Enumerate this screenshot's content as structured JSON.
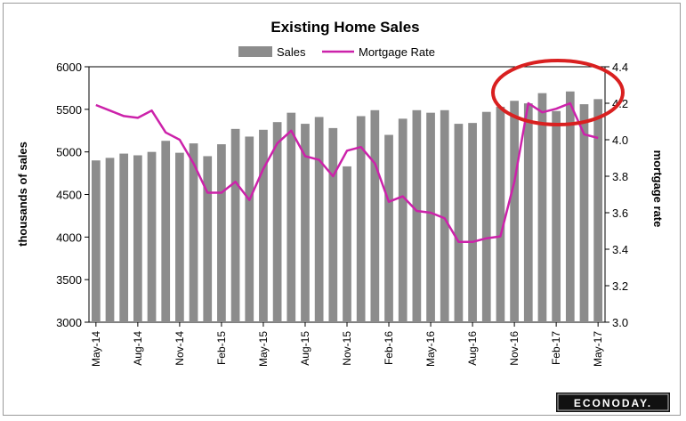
{
  "chart_data": {
    "type": "bar+line",
    "title": "Existing Home Sales",
    "ylabel": "thousands of sales",
    "y2label": "mortgage rate",
    "ylim": [
      3000,
      6000
    ],
    "y2lim": [
      3.0,
      4.4
    ],
    "yticks": [
      "6000",
      "5500",
      "5000",
      "4500",
      "4000",
      "3500",
      "3000"
    ],
    "y2ticks": [
      "4.4",
      "4.2",
      "4.0",
      "3.8",
      "3.6",
      "3.4",
      "3.2",
      "3.0"
    ],
    "x_labels": [
      {
        "label": "May-14",
        "index": 0
      },
      {
        "label": "Aug-14",
        "index": 3
      },
      {
        "label": "Nov-14",
        "index": 6
      },
      {
        "label": "Feb-15",
        "index": 9
      },
      {
        "label": "May-15",
        "index": 12
      },
      {
        "label": "Aug-15",
        "index": 15
      },
      {
        "label": "Nov-15",
        "index": 18
      },
      {
        "label": "Feb-16",
        "index": 21
      },
      {
        "label": "May-16",
        "index": 24
      },
      {
        "label": "Aug-16",
        "index": 27
      },
      {
        "label": "Nov-16",
        "index": 30
      },
      {
        "label": "Feb-17",
        "index": 33
      },
      {
        "label": "May-17",
        "index": 36
      }
    ],
    "legend": {
      "placement": "top-center"
    },
    "series": [
      {
        "name": "Sales",
        "type": "bar",
        "color": "#8c8c8c",
        "axis": "left",
        "values": [
          4900,
          4930,
          4980,
          4960,
          5000,
          5130,
          4990,
          5100,
          4950,
          5090,
          5270,
          5180,
          5260,
          5350,
          5460,
          5330,
          5410,
          5280,
          4830,
          5420,
          5490,
          5200,
          5390,
          5490,
          5460,
          5490,
          5330,
          5340,
          5470,
          5530,
          5600,
          5570,
          5690,
          5480,
          5710,
          5560,
          5620
        ]
      },
      {
        "name": "Mortgage Rate",
        "type": "line",
        "color": "#cc22aa",
        "axis": "right",
        "values": [
          4.19,
          4.16,
          4.13,
          4.12,
          4.16,
          4.04,
          4.0,
          3.87,
          3.71,
          3.71,
          3.77,
          3.67,
          3.84,
          3.98,
          4.05,
          3.91,
          3.89,
          3.8,
          3.94,
          3.96,
          3.87,
          3.66,
          3.69,
          3.61,
          3.6,
          3.57,
          3.44,
          3.44,
          3.46,
          3.47,
          3.77,
          4.2,
          4.15,
          4.17,
          4.2,
          4.03,
          4.01
        ]
      }
    ],
    "annotation": {
      "type": "ellipse",
      "color": "#d92020",
      "around": "late-2016 to May-17 peak"
    }
  },
  "watermark": "ECONODAY."
}
